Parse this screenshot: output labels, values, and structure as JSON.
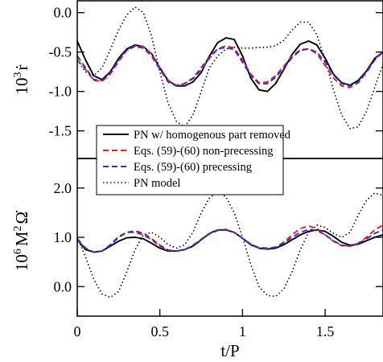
{
  "chart_data": [
    {
      "type": "line",
      "panel": "top",
      "ylabel": "10³ ṙ",
      "ylabel_base": "10",
      "ylabel_exp": "3",
      "ylabel_sym": "ṙ",
      "xlim": [
        0,
        1.85
      ],
      "ylim": [
        -1.85,
        0.15
      ],
      "yticks": [
        0.0,
        -0.5,
        -1.0,
        -1.5
      ],
      "ytick_labels": [
        "0.0",
        "-0.5",
        "-1.0",
        "-1.5"
      ],
      "grid": false,
      "series": [
        {
          "name": "PN w/ homogenous part removed",
          "color": "#000000",
          "dash": "solid",
          "x": [
            0,
            0.05,
            0.1,
            0.15,
            0.2,
            0.25,
            0.3,
            0.35,
            0.4,
            0.45,
            0.5,
            0.55,
            0.6,
            0.65,
            0.7,
            0.75,
            0.8,
            0.85,
            0.9,
            0.95,
            1.0,
            1.05,
            1.1,
            1.15,
            1.2,
            1.25,
            1.3,
            1.35,
            1.4,
            1.45,
            1.5,
            1.55,
            1.6,
            1.65,
            1.7,
            1.75,
            1.8,
            1.85
          ],
          "y": [
            -0.36,
            -0.6,
            -0.8,
            -0.85,
            -0.75,
            -0.58,
            -0.46,
            -0.41,
            -0.43,
            -0.52,
            -0.7,
            -0.86,
            -0.93,
            -0.93,
            -0.88,
            -0.76,
            -0.55,
            -0.38,
            -0.32,
            -0.34,
            -0.55,
            -0.83,
            -0.98,
            -1.0,
            -0.9,
            -0.72,
            -0.53,
            -0.4,
            -0.36,
            -0.41,
            -0.58,
            -0.78,
            -0.89,
            -0.92,
            -0.86,
            -0.74,
            -0.58,
            -0.5
          ]
        },
        {
          "name": "Eqs. (59)-(60) non-precessing",
          "color": "#e8201c",
          "dash": "7,4",
          "x": [
            0,
            0.05,
            0.1,
            0.15,
            0.2,
            0.25,
            0.3,
            0.35,
            0.4,
            0.45,
            0.5,
            0.55,
            0.6,
            0.65,
            0.7,
            0.75,
            0.8,
            0.85,
            0.9,
            0.95,
            1.0,
            1.05,
            1.1,
            1.15,
            1.2,
            1.25,
            1.3,
            1.35,
            1.4,
            1.45,
            1.5,
            1.55,
            1.6,
            1.65,
            1.7,
            1.75,
            1.8,
            1.85
          ],
          "y": [
            -0.6,
            -0.72,
            -0.86,
            -0.87,
            -0.78,
            -0.62,
            -0.48,
            -0.42,
            -0.43,
            -0.52,
            -0.7,
            -0.86,
            -0.92,
            -0.9,
            -0.84,
            -0.73,
            -0.58,
            -0.46,
            -0.42,
            -0.45,
            -0.6,
            -0.78,
            -0.89,
            -0.88,
            -0.8,
            -0.68,
            -0.55,
            -0.47,
            -0.46,
            -0.52,
            -0.67,
            -0.83,
            -0.93,
            -0.95,
            -0.89,
            -0.76,
            -0.6,
            -0.49
          ]
        },
        {
          "name": "Eqs. (59)-(60) precessing",
          "color": "#2d2dd4",
          "dash": "7,4",
          "x": [
            0,
            0.05,
            0.1,
            0.15,
            0.2,
            0.25,
            0.3,
            0.35,
            0.4,
            0.45,
            0.5,
            0.55,
            0.6,
            0.65,
            0.7,
            0.75,
            0.8,
            0.85,
            0.9,
            0.95,
            1.0,
            1.05,
            1.1,
            1.15,
            1.2,
            1.25,
            1.3,
            1.35,
            1.4,
            1.45,
            1.5,
            1.55,
            1.6,
            1.65,
            1.7,
            1.75,
            1.8,
            1.85
          ],
          "y": [
            -0.55,
            -0.7,
            -0.85,
            -0.86,
            -0.76,
            -0.6,
            -0.47,
            -0.43,
            -0.45,
            -0.55,
            -0.72,
            -0.88,
            -0.93,
            -0.9,
            -0.83,
            -0.7,
            -0.56,
            -0.46,
            -0.44,
            -0.47,
            -0.63,
            -0.8,
            -0.9,
            -0.9,
            -0.82,
            -0.7,
            -0.57,
            -0.48,
            -0.46,
            -0.5,
            -0.63,
            -0.79,
            -0.9,
            -0.93,
            -0.88,
            -0.75,
            -0.6,
            -0.5
          ]
        },
        {
          "name": "PN model",
          "color": "#000000",
          "dash": "1.5,3",
          "x": [
            0,
            0.05,
            0.1,
            0.15,
            0.2,
            0.25,
            0.3,
            0.35,
            0.4,
            0.45,
            0.5,
            0.55,
            0.6,
            0.65,
            0.7,
            0.75,
            0.8,
            0.85,
            0.9,
            0.95,
            1.0,
            1.05,
            1.1,
            1.15,
            1.2,
            1.25,
            1.3,
            1.35,
            1.4,
            1.45,
            1.5,
            1.55,
            1.6,
            1.65,
            1.7,
            1.75,
            1.8,
            1.85
          ],
          "y": [
            -0.6,
            -0.75,
            -0.8,
            -0.7,
            -0.47,
            -0.22,
            -0.03,
            0.07,
            0.0,
            -0.3,
            -0.75,
            -1.15,
            -1.38,
            -1.45,
            -1.3,
            -1.0,
            -0.7,
            -0.55,
            -0.46,
            -0.44,
            -0.45,
            -0.45,
            -0.44,
            -0.44,
            -0.42,
            -0.35,
            -0.22,
            -0.12,
            -0.12,
            -0.28,
            -0.6,
            -0.98,
            -1.3,
            -1.47,
            -1.45,
            -1.25,
            -0.95,
            -0.65
          ]
        }
      ]
    },
    {
      "type": "line",
      "panel": "bottom",
      "xlabel": "t/P",
      "ylabel": "10⁶ M² Ω̇",
      "ylabel_base": "10",
      "ylabel_exp": "6",
      "ylabel_sym1": "M",
      "ylabel_exp2": "2",
      "ylabel_sym2": "Ω̇",
      "xlim": [
        0,
        1.85
      ],
      "ylim": [
        -0.6,
        2.6
      ],
      "xticks": [
        0,
        0.5,
        1,
        1.5
      ],
      "xtick_labels": [
        "0",
        "0.5",
        "1",
        "1.5"
      ],
      "yticks": [
        0.0,
        1.0,
        2.0
      ],
      "ytick_labels": [
        "0.0",
        "1.0",
        "2.0"
      ],
      "grid": false,
      "series": [
        {
          "name": "PN w/ homogenous part removed",
          "color": "#000000",
          "dash": "solid",
          "x": [
            0,
            0.05,
            0.1,
            0.15,
            0.2,
            0.25,
            0.3,
            0.35,
            0.4,
            0.45,
            0.5,
            0.55,
            0.6,
            0.65,
            0.7,
            0.75,
            0.8,
            0.85,
            0.9,
            0.95,
            1.0,
            1.05,
            1.1,
            1.15,
            1.2,
            1.25,
            1.3,
            1.35,
            1.4,
            1.45,
            1.5,
            1.55,
            1.6,
            1.65,
            1.7,
            1.75,
            1.8,
            1.85
          ],
          "y": [
            0.95,
            0.75,
            0.7,
            0.72,
            0.82,
            0.92,
            0.99,
            1.0,
            0.97,
            0.88,
            0.78,
            0.72,
            0.72,
            0.75,
            0.82,
            0.95,
            1.08,
            1.15,
            1.15,
            1.1,
            0.98,
            0.85,
            0.78,
            0.76,
            0.78,
            0.85,
            0.95,
            1.05,
            1.12,
            1.15,
            1.12,
            1.02,
            0.9,
            0.84,
            0.86,
            0.93,
            1.0,
            1.05
          ]
        },
        {
          "name": "Eqs. (59)-(60) non-precessing",
          "color": "#e8201c",
          "dash": "7,4",
          "x": [
            0,
            0.05,
            0.1,
            0.15,
            0.2,
            0.25,
            0.3,
            0.35,
            0.4,
            0.45,
            0.5,
            0.55,
            0.6,
            0.65,
            0.7,
            0.75,
            0.8,
            0.85,
            0.9,
            0.95,
            1.0,
            1.05,
            1.1,
            1.15,
            1.2,
            1.25,
            1.3,
            1.35,
            1.4,
            1.45,
            1.5,
            1.55,
            1.6,
            1.65,
            1.7,
            1.75,
            1.8,
            1.85
          ],
          "y": [
            0.95,
            0.78,
            0.7,
            0.72,
            0.85,
            1.02,
            1.1,
            1.1,
            1.05,
            0.95,
            0.82,
            0.73,
            0.72,
            0.75,
            0.84,
            0.96,
            1.08,
            1.15,
            1.16,
            1.1,
            0.98,
            0.86,
            0.78,
            0.77,
            0.8,
            0.9,
            1.05,
            1.18,
            1.23,
            1.18,
            1.05,
            0.92,
            0.83,
            0.82,
            0.88,
            1.0,
            1.15,
            1.25
          ]
        },
        {
          "name": "Eqs. (59)-(60) precessing",
          "color": "#2d2dd4",
          "dash": "7,4",
          "x": [
            0,
            0.05,
            0.1,
            0.15,
            0.2,
            0.25,
            0.3,
            0.35,
            0.4,
            0.45,
            0.5,
            0.55,
            0.6,
            0.65,
            0.7,
            0.75,
            0.8,
            0.85,
            0.9,
            0.95,
            1.0,
            1.05,
            1.1,
            1.15,
            1.2,
            1.25,
            1.3,
            1.35,
            1.4,
            1.45,
            1.5,
            1.55,
            1.6,
            1.65,
            1.7,
            1.75,
            1.8,
            1.85
          ],
          "y": [
            0.97,
            0.78,
            0.7,
            0.72,
            0.84,
            1.0,
            1.1,
            1.13,
            1.08,
            0.97,
            0.84,
            0.74,
            0.72,
            0.75,
            0.83,
            0.95,
            1.07,
            1.14,
            1.15,
            1.1,
            0.98,
            0.86,
            0.79,
            0.78,
            0.8,
            0.88,
            1.0,
            1.1,
            1.16,
            1.14,
            1.05,
            0.93,
            0.84,
            0.82,
            0.87,
            0.97,
            1.08,
            1.15
          ]
        },
        {
          "name": "PN model",
          "color": "#000000",
          "dash": "1.5,3",
          "x": [
            0,
            0.05,
            0.1,
            0.15,
            0.2,
            0.25,
            0.3,
            0.35,
            0.4,
            0.45,
            0.5,
            0.55,
            0.6,
            0.65,
            0.7,
            0.75,
            0.8,
            0.85,
            0.9,
            0.95,
            1.0,
            1.05,
            1.1,
            1.15,
            1.2,
            1.25,
            1.3,
            1.35,
            1.4,
            1.45,
            1.5,
            1.55,
            1.6,
            1.65,
            1.7,
            1.75,
            1.8,
            1.85
          ],
          "y": [
            1.0,
            0.6,
            0.15,
            -0.15,
            -0.22,
            -0.1,
            0.3,
            0.75,
            1.05,
            1.1,
            1.0,
            0.85,
            0.78,
            0.85,
            1.1,
            1.5,
            1.8,
            1.92,
            1.82,
            1.5,
            1.0,
            0.45,
            0.0,
            -0.18,
            -0.2,
            -0.05,
            0.3,
            0.75,
            1.1,
            1.25,
            1.2,
            1.08,
            1.0,
            1.1,
            1.45,
            1.75,
            1.9,
            1.85
          ]
        }
      ]
    }
  ],
  "legend": {
    "placement": "center-left",
    "entries": [
      "PN w/ homogenous part removed",
      "Eqs. (59)-(60) non-precessing",
      "Eqs. (59)-(60) precessing",
      "PN model"
    ]
  }
}
